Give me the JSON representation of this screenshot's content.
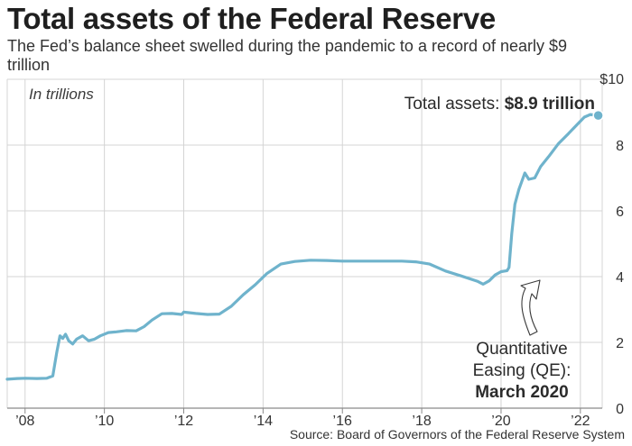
{
  "header": {
    "title": "Total assets of the Federal Reserve",
    "subtitle": "The Fed’s balance sheet swelled during the pandemic to a record of nearly $9 trillion"
  },
  "footer": {
    "source": "Source: Board of Governors of the Federal Reserve System"
  },
  "colors": {
    "line": "#6fb3cc",
    "grid": "#d4d4d4",
    "text": "#333333"
  },
  "chart_data": {
    "type": "line",
    "title": "Total assets of the Federal Reserve",
    "unit_label": "In trillions",
    "xlim": [
      2007.55,
      2022.55
    ],
    "ylim": [
      0,
      10
    ],
    "x_ticks": [
      2008,
      2010,
      2012,
      2014,
      2016,
      2018,
      2020,
      2022
    ],
    "x_tick_labels": [
      "’08",
      "’10",
      "’12",
      "’14",
      "’16",
      "’18",
      "’20",
      "’22"
    ],
    "y_ticks": [
      0,
      2,
      4,
      6,
      8,
      10
    ],
    "y_tick_labels": [
      "0",
      "2",
      "4",
      "6",
      "8",
      "$10"
    ],
    "grid": true,
    "series": [
      {
        "name": "Total assets",
        "points": [
          [
            2007.55,
            0.88
          ],
          [
            2007.8,
            0.9
          ],
          [
            2008.0,
            0.91
          ],
          [
            2008.3,
            0.9
          ],
          [
            2008.55,
            0.91
          ],
          [
            2008.7,
            0.98
          ],
          [
            2008.8,
            1.7
          ],
          [
            2008.88,
            2.2
          ],
          [
            2008.95,
            2.12
          ],
          [
            2009.02,
            2.25
          ],
          [
            2009.1,
            2.05
          ],
          [
            2009.2,
            1.95
          ],
          [
            2009.3,
            2.1
          ],
          [
            2009.45,
            2.2
          ],
          [
            2009.6,
            2.05
          ],
          [
            2009.75,
            2.1
          ],
          [
            2009.9,
            2.2
          ],
          [
            2010.1,
            2.3
          ],
          [
            2010.3,
            2.32
          ],
          [
            2010.55,
            2.36
          ],
          [
            2010.8,
            2.35
          ],
          [
            2011.0,
            2.48
          ],
          [
            2011.2,
            2.68
          ],
          [
            2011.45,
            2.87
          ],
          [
            2011.7,
            2.88
          ],
          [
            2011.95,
            2.85
          ],
          [
            2012.0,
            2.92
          ],
          [
            2012.3,
            2.88
          ],
          [
            2012.6,
            2.85
          ],
          [
            2012.9,
            2.86
          ],
          [
            2013.2,
            3.1
          ],
          [
            2013.5,
            3.45
          ],
          [
            2013.8,
            3.75
          ],
          [
            2014.1,
            4.1
          ],
          [
            2014.45,
            4.38
          ],
          [
            2014.8,
            4.46
          ],
          [
            2015.2,
            4.5
          ],
          [
            2015.6,
            4.49
          ],
          [
            2016.0,
            4.47
          ],
          [
            2016.5,
            4.47
          ],
          [
            2017.0,
            4.47
          ],
          [
            2017.5,
            4.47
          ],
          [
            2017.85,
            4.45
          ],
          [
            2018.2,
            4.38
          ],
          [
            2018.6,
            4.17
          ],
          [
            2019.0,
            4.02
          ],
          [
            2019.4,
            3.86
          ],
          [
            2019.55,
            3.77
          ],
          [
            2019.7,
            3.87
          ],
          [
            2019.85,
            4.05
          ],
          [
            2020.0,
            4.15
          ],
          [
            2020.15,
            4.18
          ],
          [
            2020.2,
            4.28
          ],
          [
            2020.27,
            5.3
          ],
          [
            2020.35,
            6.2
          ],
          [
            2020.45,
            6.65
          ],
          [
            2020.6,
            7.15
          ],
          [
            2020.7,
            6.96
          ],
          [
            2020.85,
            7.0
          ],
          [
            2021.0,
            7.35
          ],
          [
            2021.2,
            7.65
          ],
          [
            2021.45,
            8.05
          ],
          [
            2021.7,
            8.35
          ],
          [
            2021.9,
            8.6
          ],
          [
            2022.1,
            8.85
          ],
          [
            2022.25,
            8.93
          ],
          [
            2022.45,
            8.9
          ]
        ]
      }
    ],
    "annotations": {
      "total": {
        "prefix": "Total assets: ",
        "value": "$8.9 trillion",
        "x": 2022.45,
        "y": 8.9
      },
      "qe": {
        "lines": [
          "Quantitative",
          "Easing (QE):",
          "March 2020"
        ],
        "x": 2020.2,
        "y": 3.85
      }
    }
  }
}
